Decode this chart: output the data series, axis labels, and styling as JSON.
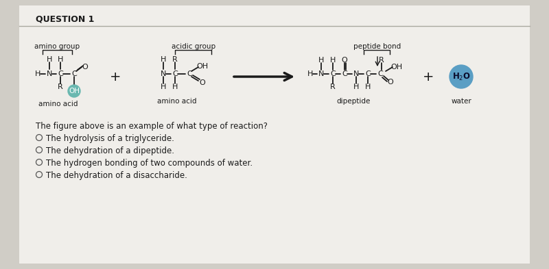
{
  "outer_bg": "#d0cdc6",
  "inner_bg": "#f0eeea",
  "header_bg": "#e0ddd6",
  "title": "QUESTION 1",
  "question_text": "The figure above is an example of what type of reaction?",
  "options": [
    "The hydrolysis of a triglyceride.",
    "The dehydration of a dipeptide.",
    "The hydrogen bonding of two compounds of water.",
    "The dehydration of a disaccharide."
  ],
  "labels": {
    "amino_group": "amino group",
    "acidic_group": "acidic group",
    "peptide_bond": "peptide bond",
    "amino_acid_1": "amino acid",
    "amino_acid_2": "amino acid",
    "dipeptide": "dipeptide",
    "water": "water"
  },
  "h2o_circle_color": "#5a9ec4",
  "oh_circle_color": "#6ab8b0",
  "line_color": "#1a1a1a",
  "text_color": "#1a1a1a",
  "bracket_color": "#1a1a1a",
  "header_line_color": "#aaa9a0"
}
